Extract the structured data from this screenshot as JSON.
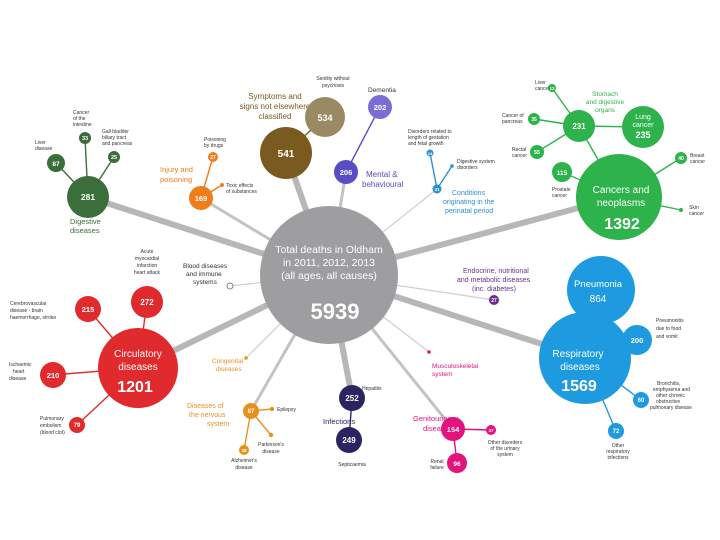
{
  "center": {
    "title_lines": [
      "Total deaths in Oldham",
      "in 2011, 2012, 2013",
      "(all ages, all causes)"
    ],
    "value": "5939"
  },
  "groups": {
    "digestive": {
      "label_lines": [
        "Digestive",
        "diseases"
      ],
      "value": "281",
      "children": [
        {
          "value": "87",
          "label_lines": [
            "Liver",
            "disease"
          ]
        },
        {
          "value": "33",
          "label_lines": [
            "Cancer",
            "of the",
            "intestine"
          ]
        },
        {
          "value": "25",
          "label_lines": [
            "Gall bladder",
            "biliary tract",
            "and pancreas"
          ]
        }
      ]
    },
    "symptoms": {
      "label_lines": [
        "Symptoms and",
        "signs not elsewhere",
        "classified"
      ],
      "value": "541",
      "child": {
        "value": "534",
        "label_lines": [
          "Senility without",
          "psychosis"
        ]
      }
    },
    "injury": {
      "label_lines": [
        "Injury and",
        "poisoning"
      ],
      "value": "169",
      "children": [
        {
          "value": "27",
          "label_lines": [
            "Poisoning",
            "by drugs"
          ]
        },
        {
          "value": "",
          "label_lines": [
            "Toxic effects",
            "of substances"
          ]
        }
      ]
    },
    "mental": {
      "label_lines": [
        "Mental &",
        "behavioural"
      ],
      "value": "206",
      "child": {
        "value": "202",
        "label_lines": [
          "Dementia"
        ]
      }
    },
    "perinatal": {
      "label_lines": [
        "Conditions",
        "originating in the",
        "perinatal period"
      ],
      "value": "31",
      "children": [
        {
          "value": "14",
          "label_lines": [
            "Disorders related to",
            "length of gestation",
            "and fetal growth"
          ]
        },
        {
          "value": "",
          "label_lines": [
            "Digestive system",
            "disorders"
          ]
        }
      ]
    },
    "cancers": {
      "label_lines": [
        "Cancers and",
        "neoplasms"
      ],
      "value": "1392",
      "children": [
        {
          "value": "231",
          "label_lines": [
            "Stomach",
            "and digestive",
            "organs"
          ]
        },
        {
          "value": "235",
          "label_lines": [
            "Lung",
            "cancer"
          ]
        },
        {
          "value": "13",
          "label_lines": [
            "Liver",
            "cancer"
          ]
        },
        {
          "value": "35",
          "label_lines": [
            "Cancer of",
            "pancreas"
          ]
        },
        {
          "value": "55",
          "label_lines": [
            "Rectal",
            "cancer"
          ]
        },
        {
          "value": "115",
          "label_lines": [
            "Prostate",
            "cancer"
          ]
        },
        {
          "value": "40",
          "label_lines": [
            "Breast",
            "cancer"
          ]
        },
        {
          "value": "",
          "label_lines": [
            "Skin",
            "cancer"
          ]
        }
      ]
    },
    "endocrine": {
      "label_lines": [
        "Endocrine, nutritional",
        "and metabolic diseases",
        "(inc. diabetes)"
      ],
      "value": "27"
    },
    "blood": {
      "label_lines": [
        "Blood diseases",
        "and immune",
        "systems"
      ],
      "value": ""
    },
    "circulatory": {
      "label_lines": [
        "Circulatory",
        "diseases"
      ],
      "value": "1201",
      "children": [
        {
          "value": "272",
          "label_lines": [
            "Acute",
            "myocardial",
            "infarction",
            "heart attack"
          ]
        },
        {
          "value": "215",
          "label_lines": [
            "Cerebrovascular",
            "disease - brain",
            "haemorrhage, stroke"
          ]
        },
        {
          "value": "210",
          "label_lines": [
            "Ischaemic",
            "heart",
            "disease"
          ]
        },
        {
          "value": "79",
          "label_lines": [
            "Pulmonary",
            "embolism",
            "(blood clot)"
          ]
        }
      ]
    },
    "congenital": {
      "label_lines": [
        "Congenital",
        "diseases"
      ],
      "value": ""
    },
    "nervous": {
      "label_lines": [
        "Diseases of",
        "the nervous",
        "system"
      ],
      "value": "87",
      "children": [
        {
          "value": "",
          "label_lines": [
            "Epilepsy"
          ]
        },
        {
          "value": "",
          "label_lines": [
            "Parkinson's",
            "disease"
          ]
        },
        {
          "value": "36",
          "label_lines": [
            "Alzheimer's",
            "disease"
          ]
        }
      ]
    },
    "infections": {
      "label_lines": [
        "Infections"
      ],
      "value": "252",
      "children": [
        {
          "value": "",
          "label_lines": [
            "Hepatitis"
          ]
        },
        {
          "value": "249",
          "label_lines": [
            "Septicaemia"
          ]
        }
      ]
    },
    "musculo": {
      "label_lines": [
        "Musculoskeletal",
        "system"
      ],
      "value": ""
    },
    "genitourinary": {
      "label_lines": [
        "Genitourinary",
        "diseases"
      ],
      "value": "164",
      "children": [
        {
          "value": "37",
          "label_lines": [
            "Other disorders",
            "of the urinary",
            "system"
          ]
        },
        {
          "value": "96",
          "label_lines": [
            "Renal",
            "failure"
          ]
        }
      ]
    },
    "respiratory": {
      "label_lines": [
        "Respiratory",
        "diseases"
      ],
      "value": "1569",
      "children": [
        {
          "value": "864",
          "label_lines": [
            "Pneumonia"
          ]
        },
        {
          "value": "200",
          "label_lines": [
            "Pneumonitis",
            "due to food",
            "and vomit"
          ]
        },
        {
          "value": "60",
          "label_lines": [
            "Bronchitis,",
            "emphysema and",
            "other chronic",
            "obstructive",
            "pulmonary disease"
          ]
        },
        {
          "value": "72",
          "label_lines": [
            "Other",
            "respiratory",
            "infections"
          ]
        }
      ]
    }
  },
  "colors": {
    "hub": "#9e9da0",
    "digestive": "#3b6e3b",
    "symptoms": "#7a5a1e",
    "injury": "#f07d1a",
    "mental": "#5a4cc4",
    "perinatal": "#2f8fd4",
    "cancers": "#2db24c",
    "endocrine": "#6b2d8c",
    "circulatory": "#e12a2d",
    "nervous": "#e8901c",
    "infections": "#2a2560",
    "genitourinary": "#e3137d",
    "respiratory": "#1e9be0"
  }
}
